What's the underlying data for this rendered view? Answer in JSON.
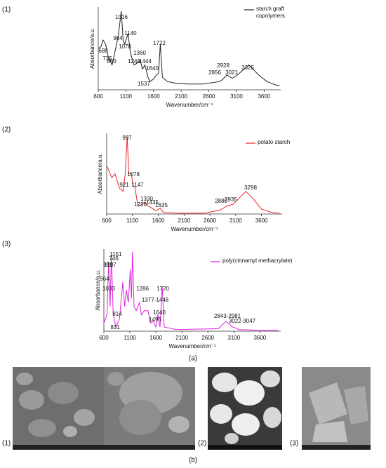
{
  "chart_data": [
    {
      "type": "line",
      "panel": "(1)",
      "xlabel": "Wavenumber/cm⁻¹",
      "ylabel": "Absorbance/a.u.",
      "xlim": [
        600,
        3900
      ],
      "ylim": [
        0,
        1
      ],
      "xticks": [
        600,
        1100,
        1600,
        2100,
        2600,
        3100,
        3600
      ],
      "grid": false,
      "x": [
        600,
        650,
        688,
        735,
        780,
        850,
        900,
        964,
        1016,
        1050,
        1078,
        1110,
        1140,
        1180,
        1248,
        1300,
        1360,
        1400,
        1444,
        1500,
        1537,
        1600,
        1640,
        1690,
        1722,
        1760,
        1850,
        2000,
        2200,
        2500,
        2800,
        2856,
        2928,
        3021,
        3100,
        3325,
        3500,
        3650,
        3800,
        3880
      ],
      "series": [
        {
          "name": "starch graft copolymers",
          "color": "#222222",
          "values": [
            0.5,
            0.52,
            0.6,
            0.55,
            0.4,
            0.3,
            0.45,
            0.66,
            0.95,
            0.6,
            0.55,
            0.62,
            0.68,
            0.45,
            0.3,
            0.32,
            0.35,
            0.25,
            0.3,
            0.15,
            0.1,
            0.13,
            0.17,
            0.2,
            0.55,
            0.15,
            0.1,
            0.08,
            0.07,
            0.07,
            0.1,
            0.13,
            0.18,
            0.14,
            0.17,
            0.3,
            0.18,
            0.1,
            0.06,
            0.05
          ]
        }
      ],
      "annotations": [
        "688",
        "735",
        "1016",
        "964",
        "1140",
        "1078",
        "850",
        "1360",
        "1248",
        "1444",
        "1640",
        "1537",
        "1722",
        "2928",
        "2856",
        "3021",
        "3325"
      ]
    },
    {
      "type": "line",
      "panel": "(2)",
      "xlabel": "Wavenumber/cm⁻¹",
      "ylabel": "Absorbance/a.u.",
      "xlim": [
        600,
        4000
      ],
      "ylim": [
        0,
        1
      ],
      "xticks": [
        600,
        1100,
        1600,
        2100,
        2600,
        3100,
        3600
      ],
      "grid": false,
      "x": [
        600,
        700,
        760,
        850,
        921,
        960,
        997,
        1030,
        1078,
        1110,
        1147,
        1200,
        1236,
        1300,
        1330,
        1400,
        1435,
        1550,
        1635,
        1700,
        2000,
        2500,
        2800,
        2880,
        2935,
        3050,
        3298,
        3450,
        3600,
        3800,
        3950
      ],
      "series": [
        {
          "name": "potato starch",
          "color": "#e8262a",
          "values": [
            0.6,
            0.45,
            0.5,
            0.32,
            0.28,
            0.5,
            0.96,
            0.5,
            0.5,
            0.35,
            0.33,
            0.12,
            0.1,
            0.13,
            0.15,
            0.1,
            0.09,
            0.04,
            0.07,
            0.02,
            0.01,
            0.01,
            0.05,
            0.08,
            0.1,
            0.12,
            0.28,
            0.18,
            0.06,
            0.02,
            0.01
          ]
        }
      ],
      "annotations": [
        "997",
        "1078",
        "921",
        "1147",
        "1330",
        "1236",
        "1435",
        "1635",
        "2880",
        "2935",
        "3298"
      ]
    },
    {
      "type": "line",
      "panel": "(3)",
      "xlabel": "Wavenumber/cm⁻¹",
      "ylabel": "Absorbance/a.u.",
      "xlim": [
        600,
        4000
      ],
      "ylim": [
        0,
        1
      ],
      "xticks": [
        600,
        1100,
        1600,
        2100,
        2600,
        3100,
        3600
      ],
      "grid": false,
      "x": [
        600,
        660,
        692,
        720,
        746,
        780,
        814,
        831,
        900,
        964,
        1000,
        1033,
        1070,
        1107,
        1130,
        1151,
        1180,
        1220,
        1286,
        1320,
        1377,
        1448,
        1495,
        1550,
        1600,
        1640,
        1680,
        1720,
        1760,
        2000,
        2800,
        2843,
        2950,
        2981,
        3030,
        3047,
        3200,
        3600,
        3950
      ],
      "series": [
        {
          "name": "poly(cinnamyl methacrylate)",
          "color": "#e020e0",
          "values": [
            0.1,
            0.2,
            0.85,
            0.3,
            0.93,
            0.2,
            0.1,
            0.05,
            0.15,
            0.6,
            0.3,
            0.5,
            0.35,
            0.75,
            0.4,
            0.97,
            0.3,
            0.25,
            0.35,
            0.2,
            0.25,
            0.25,
            0.1,
            0.12,
            0.05,
            0.2,
            0.05,
            0.55,
            0.05,
            0.02,
            0.03,
            0.06,
            0.12,
            0.1,
            0.08,
            0.06,
            0.02,
            0.01,
            0.01
          ]
        }
      ],
      "annotations": [
        "692",
        "746",
        "1151",
        "1107",
        "964",
        "1033",
        "1286",
        "1720",
        "1377-1448",
        "1640",
        "1495",
        "814",
        "831",
        "2843-2981",
        "3022-3047"
      ]
    }
  ],
  "figure": {
    "label_a": "(a)",
    "label_b": "(b)",
    "sem_labels": [
      "(1)",
      "(2)",
      "(3)"
    ]
  }
}
